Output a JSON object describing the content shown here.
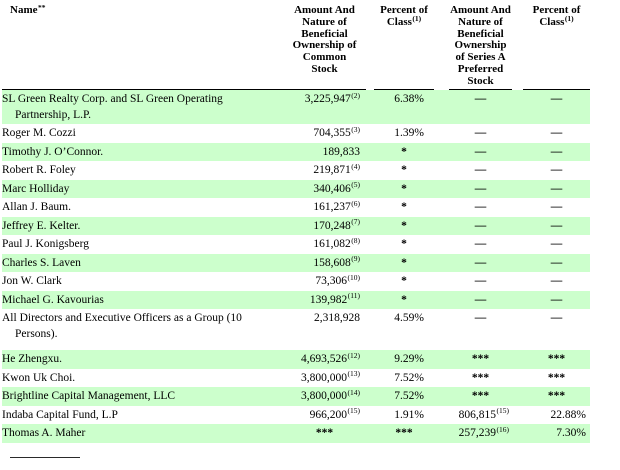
{
  "colors": {
    "row_highlight": "#ccffcc",
    "text": "#000000",
    "rule": "#000000"
  },
  "table": {
    "name_header": "Name",
    "name_header_sup": "**",
    "columns": [
      {
        "lines": [
          "Amount And",
          "Nature of",
          "Beneficial",
          "Ownership of",
          "Common",
          "Stock"
        ],
        "sup": ""
      },
      {
        "lines": [
          "Percent of",
          "Class"
        ],
        "sup": "(1)"
      },
      {
        "lines": [
          "Amount And",
          "Nature of",
          "Beneficial",
          "Ownership",
          "of Series A",
          "Preferred",
          "Stock"
        ],
        "sup": ""
      },
      {
        "lines": [
          "Percent of",
          "Class"
        ],
        "sup": "(1)"
      }
    ],
    "rows": [
      {
        "name": "SL Green Realty Corp. and SL Green Operating",
        "name2": "Partnership, L.P.",
        "green": true,
        "amt": "3,225,947",
        "amt_sup": "(2)",
        "pct": "6.38%",
        "amt2": "—",
        "amt2_sup": "",
        "pct2": "—"
      },
      {
        "name": "Roger M. Cozzi",
        "name2": "",
        "green": false,
        "amt": "704,355",
        "amt_sup": "(3)",
        "pct": "1.39%",
        "amt2": "—",
        "amt2_sup": "",
        "pct2": "—"
      },
      {
        "name": "Timothy J. O’Connor.",
        "name2": "",
        "green": true,
        "amt": "189,833",
        "amt_sup": "",
        "pct": "*",
        "amt2": "—",
        "amt2_sup": "",
        "pct2": "—"
      },
      {
        "name": "Robert R. Foley",
        "name2": "",
        "green": false,
        "amt": "219,871",
        "amt_sup": "(4)",
        "pct": "*",
        "amt2": "—",
        "amt2_sup": "",
        "pct2": "—"
      },
      {
        "name": "Marc Holliday",
        "name2": "",
        "green": true,
        "amt": "340,406",
        "amt_sup": "(5)",
        "pct": "*",
        "amt2": "—",
        "amt2_sup": "",
        "pct2": "—"
      },
      {
        "name": "Allan J. Baum.",
        "name2": "",
        "green": false,
        "amt": "161,237",
        "amt_sup": "(6)",
        "pct": "*",
        "amt2": "—",
        "amt2_sup": "",
        "pct2": "—"
      },
      {
        "name": "Jeffrey E. Kelter.",
        "name2": "",
        "green": true,
        "amt": "170,248",
        "amt_sup": "(7)",
        "pct": "*",
        "amt2": "—",
        "amt2_sup": "",
        "pct2": "—"
      },
      {
        "name": "Paul J. Konigsberg",
        "name2": "",
        "green": false,
        "amt": "161,082",
        "amt_sup": "(8)",
        "pct": "*",
        "amt2": "—",
        "amt2_sup": "",
        "pct2": "—"
      },
      {
        "name": "Charles S. Laven",
        "name2": "",
        "green": true,
        "amt": "158,608",
        "amt_sup": "(9)",
        "pct": "*",
        "amt2": "—",
        "amt2_sup": "",
        "pct2": "—"
      },
      {
        "name": "Jon W. Clark",
        "name2": "",
        "green": false,
        "amt": "73,306",
        "amt_sup": "(10)",
        "pct": "*",
        "amt2": "—",
        "amt2_sup": "",
        "pct2": "—"
      },
      {
        "name": "Michael G. Kavourias",
        "name2": "",
        "green": true,
        "amt": "139,982",
        "amt_sup": "(11)",
        "pct": "*",
        "amt2": "—",
        "amt2_sup": "",
        "pct2": "—"
      },
      {
        "name": "All Directors and Executive Officers as a Group (10",
        "name2": "Persons).",
        "green": false,
        "tall": true,
        "amt": "2,318,928",
        "amt_sup": "",
        "pct": "4.59%",
        "amt2": "—",
        "amt2_sup": "",
        "pct2": "—"
      },
      {
        "name": "He Zhengxu.",
        "name2": "",
        "green": true,
        "amt": "4,693,526",
        "amt_sup": "(12)",
        "pct": "9.29%",
        "amt2": "***",
        "amt2_sup": "",
        "pct2": "***"
      },
      {
        "name": "Kwon Uk Choi.",
        "name2": "",
        "green": false,
        "amt": "3,800,000",
        "amt_sup": "(13)",
        "pct": "7.52%",
        "amt2": "***",
        "amt2_sup": "",
        "pct2": "***"
      },
      {
        "name": "Brightline Capital Management, LLC",
        "name2": "",
        "green": true,
        "amt": "3,800,000",
        "amt_sup": "(14)",
        "pct": "7.52%",
        "amt2": "***",
        "amt2_sup": "",
        "pct2": "***"
      },
      {
        "name": "Indaba Capital Fund, L.P",
        "name2": "",
        "green": false,
        "amt": "966,200",
        "amt_sup": "(15)",
        "pct": "1.91%",
        "amt2": "806,815",
        "amt2_sup": "(15)",
        "pct2": "22.88%"
      },
      {
        "name": "Thomas A. Maher",
        "name2": "",
        "green": true,
        "amt": "***",
        "amt_sup": "",
        "pct": "***",
        "amt2": "257,239",
        "amt2_sup": "(16)",
        "pct2": "7.30%"
      }
    ]
  }
}
